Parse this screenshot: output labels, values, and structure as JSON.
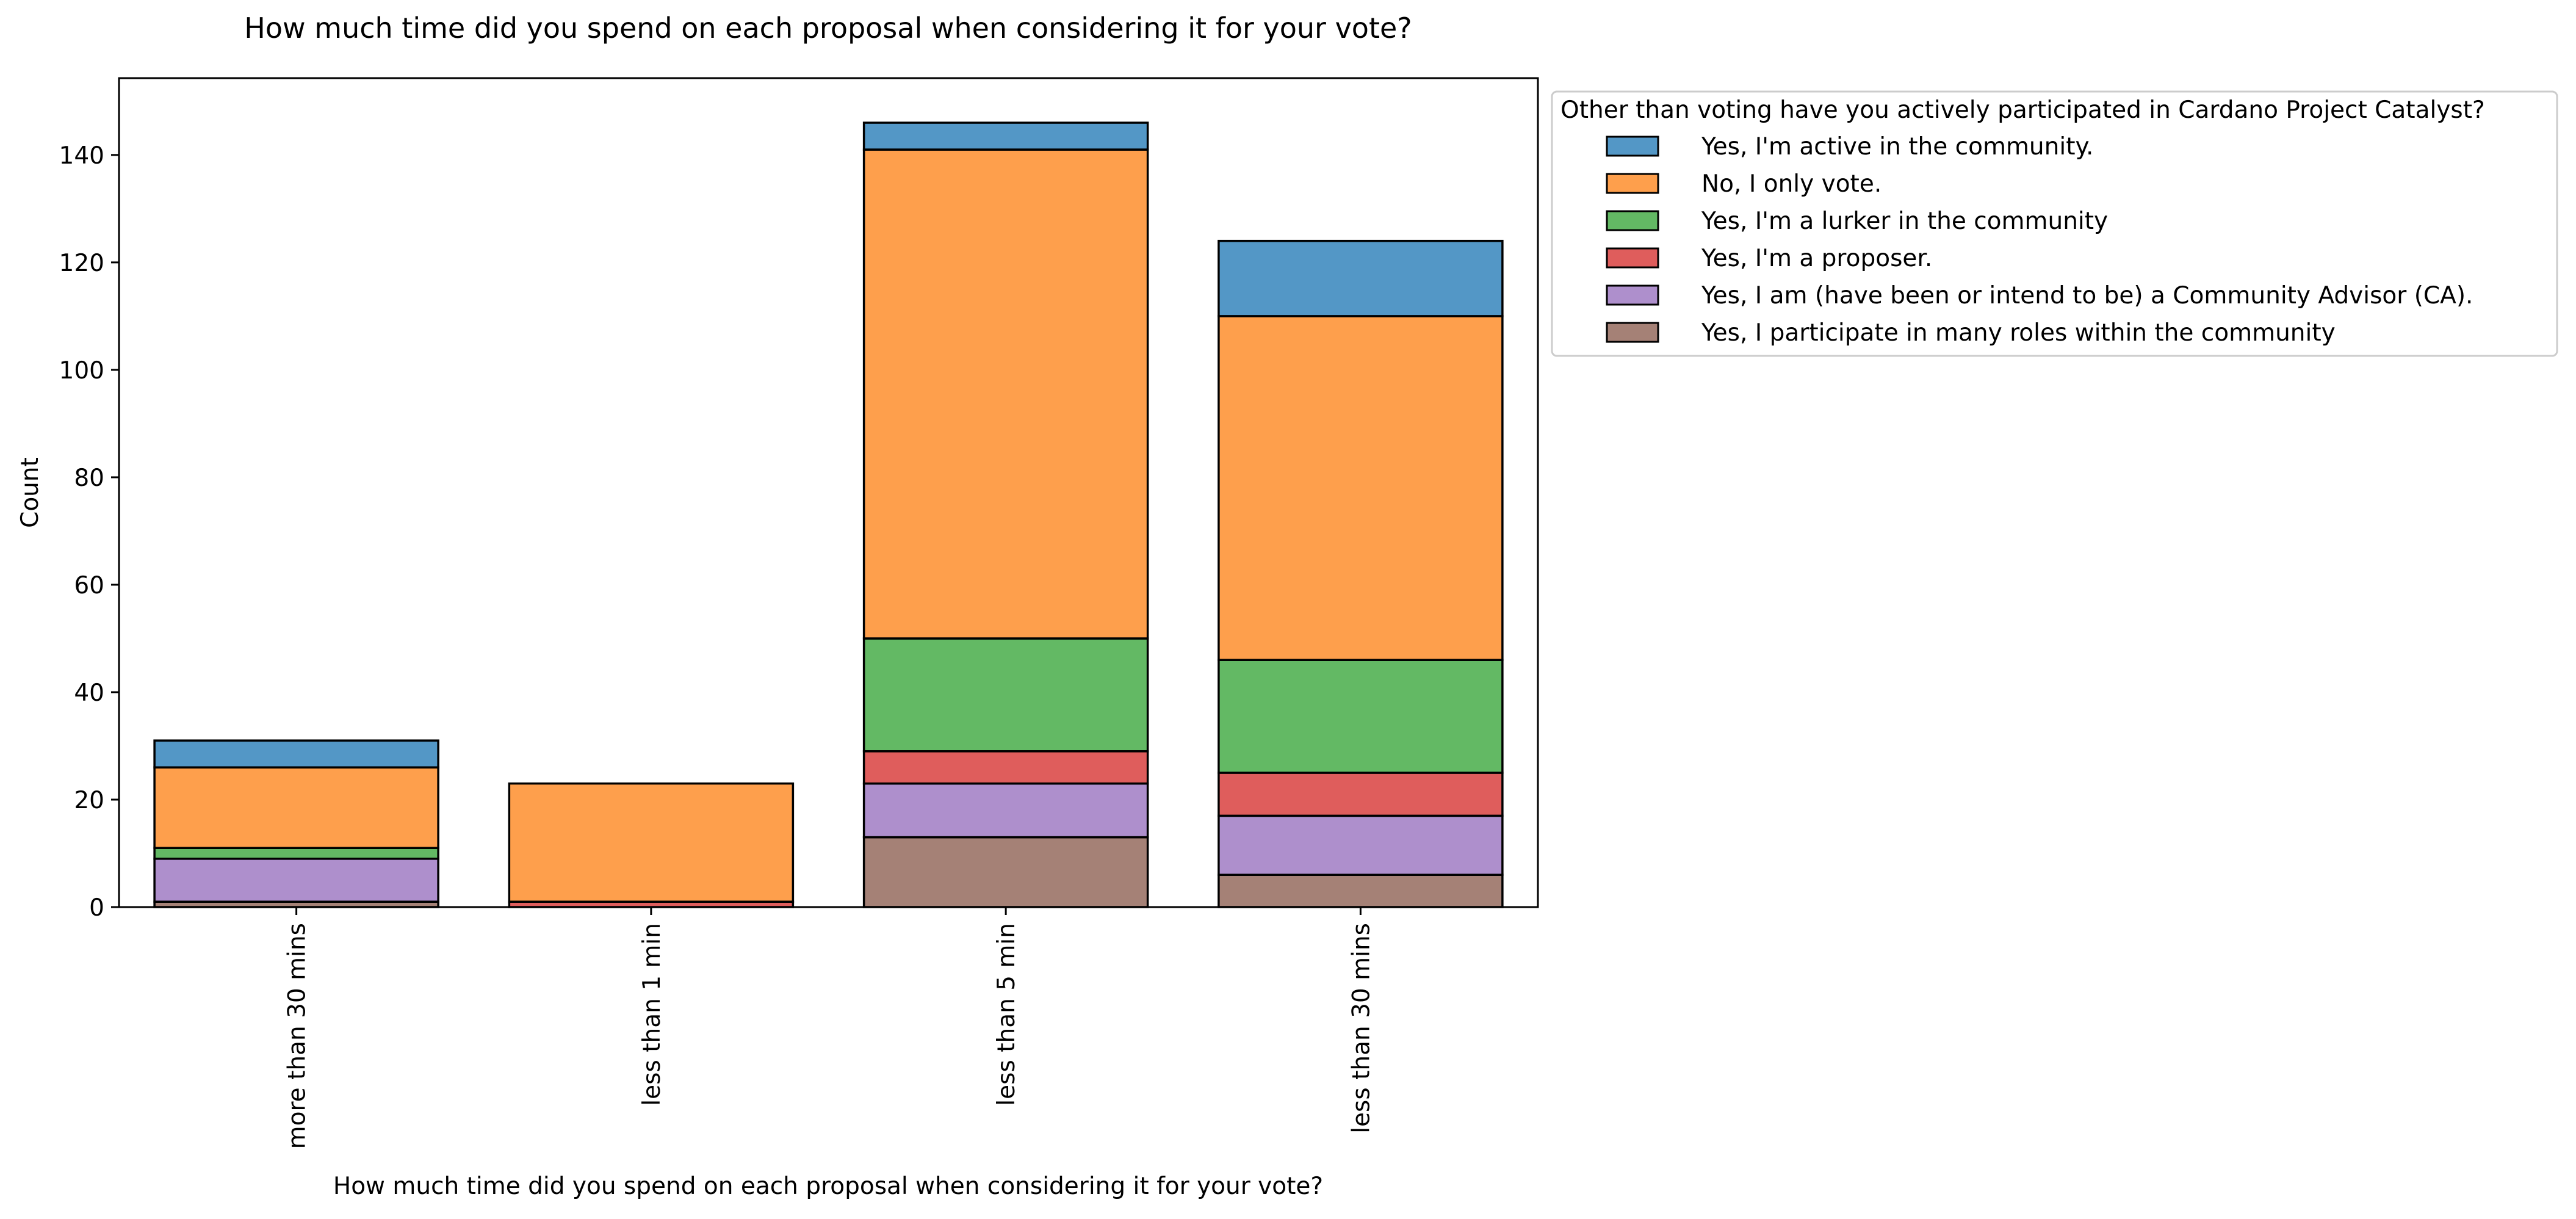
{
  "chart_data": {
    "type": "bar",
    "stacked": true,
    "title": "How much time did you spend on each proposal when considering it for your vote?",
    "xlabel": "How much time did you spend on each proposal when considering it for your vote?",
    "ylabel": "Count",
    "ylim": [
      0,
      154.3
    ],
    "yticks": [
      0,
      20,
      40,
      60,
      80,
      100,
      120,
      140
    ],
    "grid": false,
    "legend_position": "outside-right",
    "legend_title": "Other than voting have you actively participated in Cardano Project Catalyst?",
    "categories": [
      "more than 30 mins",
      "less than 1 min",
      "less than 5 min",
      "less than 30 mins"
    ],
    "series": [
      {
        "name": "Yes, I participate in many roles within the community",
        "color": "#a58176",
        "values": [
          1,
          0,
          13,
          6
        ]
      },
      {
        "name": "Yes, I am (have been or intend to be) a Community Advisor (CA).",
        "color": "#ae8fcc",
        "values": [
          8,
          0,
          10,
          11
        ]
      },
      {
        "name": "Yes, I'm a proposer.",
        "color": "#df5d5c",
        "values": [
          0,
          1,
          6,
          8
        ]
      },
      {
        "name": "Yes, I'm a lurker in the community",
        "color": "#63b964",
        "values": [
          2,
          0,
          21,
          21
        ]
      },
      {
        "name": "No, I only vote.",
        "color": "#fe9f4c",
        "values": [
          15,
          22,
          91,
          64
        ]
      },
      {
        "name": "Yes, I'm active in the community.",
        "color": "#5397c6",
        "values": [
          5,
          0,
          5,
          14
        ]
      }
    ],
    "legend_order": [
      "Yes, I'm active in the community.",
      "No, I only vote.",
      "Yes, I'm a lurker in the community",
      "Yes, I'm a proposer.",
      "Yes, I am (have been or intend to be) a Community Advisor (CA).",
      "Yes, I participate in many roles within the community"
    ]
  }
}
